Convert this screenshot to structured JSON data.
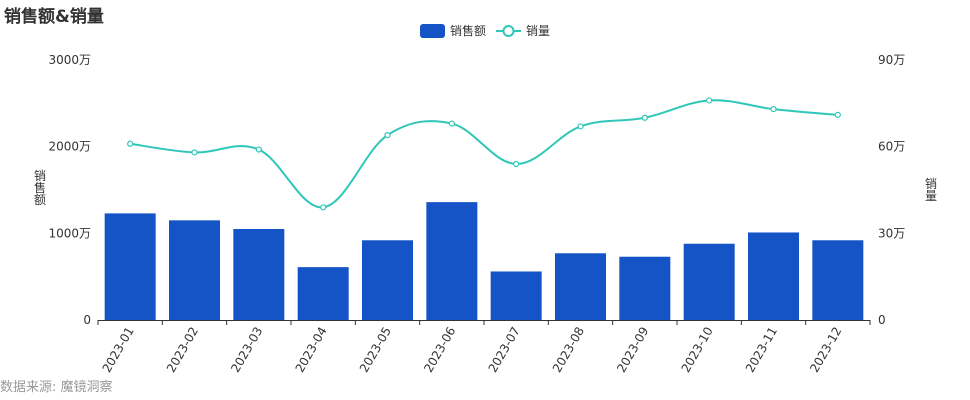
{
  "title": "销售额&销量",
  "source": "数据来源: 魔镜洞察",
  "colors": {
    "bar": "#1554c7",
    "line": "#2ec7b8",
    "axis": "#333333"
  },
  "chart_data": {
    "type": "bar",
    "title": "销售额&销量",
    "categories": [
      "2023-01",
      "2023-02",
      "2023-03",
      "2023-04",
      "2023-05",
      "2023-06",
      "2023-07",
      "2023-08",
      "2023-09",
      "2023-10",
      "2023-11",
      "2023-12"
    ],
    "series": [
      {
        "name": "销售额",
        "type": "bar",
        "axis": "left",
        "values": [
          12300000,
          11500000,
          10500000,
          6100000,
          9200000,
          13600000,
          5600000,
          7700000,
          7300000,
          8800000,
          10100000,
          9200000
        ]
      },
      {
        "name": "销量",
        "type": "line",
        "axis": "right",
        "smooth": true,
        "values": [
          61,
          58,
          59,
          39,
          64,
          68,
          54,
          67,
          70,
          76,
          73,
          71
        ]
      }
    ],
    "ylabel_left": "销售额",
    "ylabel_right": "销量",
    "ylim_left": [
      0,
      30000000
    ],
    "ylim_right": [
      0,
      90
    ],
    "yticks_left": [
      "0",
      "1000万",
      "2000万",
      "3000万"
    ],
    "yticks_right": [
      "0",
      "30万",
      "60万",
      "90万"
    ],
    "legend_position": "top-center",
    "grid": false
  }
}
